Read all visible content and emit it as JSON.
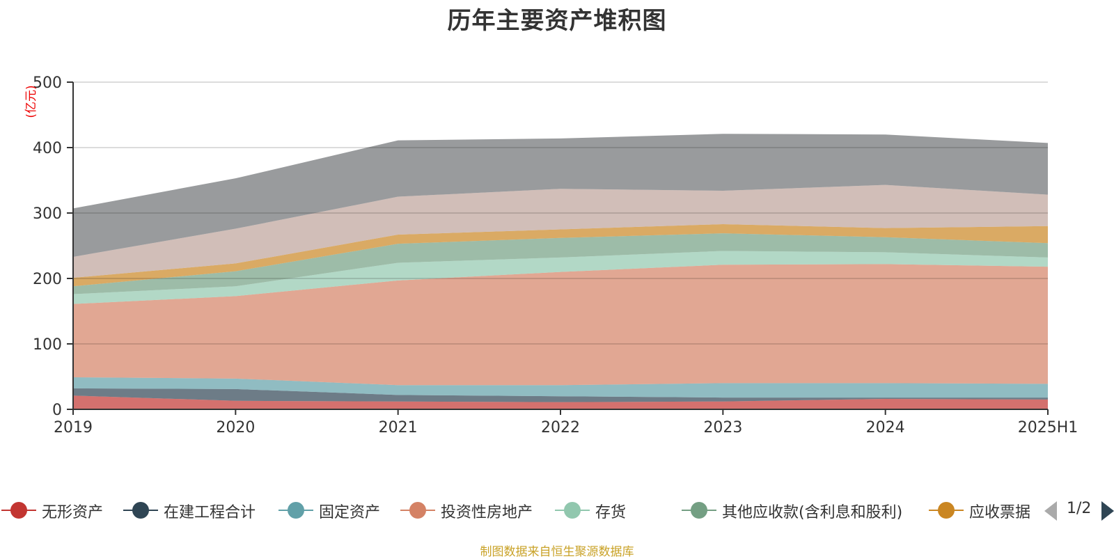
{
  "title": "历年主要资产堆积图",
  "source_note": "制图数据来自恒生聚源数据库",
  "pager": {
    "text": "1/2"
  },
  "chart_data": {
    "type": "area",
    "stacked": true,
    "title": "历年主要资产堆积图",
    "ylabel": "(亿元)",
    "ylabel_color": "#ee0000",
    "ylim": [
      0,
      500
    ],
    "y_ticks": [
      "0",
      "100",
      "200",
      "300",
      "400",
      "500"
    ],
    "categories": [
      "2019",
      "2020",
      "2021",
      "2022",
      "2023",
      "2024",
      "2025H1"
    ],
    "grid": true,
    "legend_position": "bottom",
    "series": [
      {
        "name": "无形资产",
        "color": "#c23531",
        "values": [
          21,
          13,
          12,
          11,
          12,
          16,
          15
        ]
      },
      {
        "name": "在建工程合计",
        "color": "#2f4554",
        "values": [
          11,
          18,
          10,
          9,
          6,
          2,
          3
        ]
      },
      {
        "name": "固定资产",
        "color": "#61a0a8",
        "values": [
          17,
          16,
          15,
          17,
          22,
          22,
          21
        ]
      },
      {
        "name": "投资性房地产",
        "color": "#d48265",
        "values": [
          112,
          126,
          160,
          173,
          181,
          182,
          179
        ]
      },
      {
        "name": "存货",
        "color": "#91c7ae",
        "values": [
          15,
          15,
          27,
          22,
          21,
          18,
          14
        ]
      },
      {
        "name": "其他应收款(含利息和股利)",
        "color": "#749f83",
        "values": [
          12,
          23,
          29,
          30,
          27,
          23,
          22
        ]
      },
      {
        "name": "应收票据及应收账款",
        "color": "#ca8622",
        "values": [
          13,
          12,
          14,
          13,
          14,
          14,
          26
        ]
      },
      {
        "color": "#bda29a",
        "values": [
          32,
          53,
          58,
          62,
          51,
          66,
          48
        ]
      },
      {
        "color": "#6e7074",
        "values": [
          74,
          77,
          86,
          77,
          87,
          77,
          79
        ]
      }
    ]
  },
  "legend_items": [
    {
      "label": "无形资产",
      "color": "#c23531"
    },
    {
      "label": "在建工程合计",
      "color": "#2f4554"
    },
    {
      "label": "固定资产",
      "color": "#61a0a8"
    },
    {
      "label": "投资性房地产",
      "color": "#d48265"
    },
    {
      "label": "存货",
      "color": "#91c7ae"
    },
    {
      "label": "其他应收款(含利息和股利)",
      "color": "#749f83"
    },
    {
      "label": "应收票据及应收账款",
      "color": "#ca8622"
    }
  ]
}
